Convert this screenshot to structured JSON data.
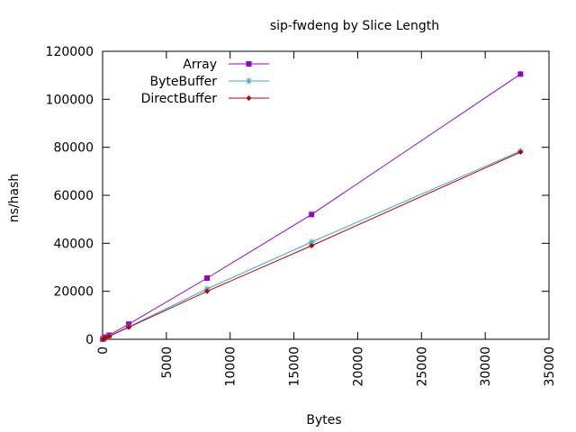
{
  "chart_data": {
    "type": "line",
    "title": "sip-fwdeng by Slice Length",
    "xlabel": "Bytes",
    "ylabel": "ns/hash",
    "xlim": [
      0,
      35000
    ],
    "ylim": [
      0,
      120000
    ],
    "xticks": [
      0,
      5000,
      10000,
      15000,
      20000,
      25000,
      30000,
      35000
    ],
    "yticks": [
      0,
      20000,
      40000,
      60000,
      80000,
      100000,
      120000
    ],
    "grid": false,
    "legend_position": "top-left",
    "series": [
      {
        "name": "Array",
        "color": "#9400d3",
        "marker": "square",
        "x": [
          16,
          32,
          64,
          128,
          256,
          512,
          2048,
          8192,
          16384,
          32768
        ],
        "y": [
          60,
          120,
          240,
          480,
          950,
          1700,
          6300,
          25500,
          52000,
          110500
        ]
      },
      {
        "name": "ByteBuffer",
        "color": "#3aa8d8",
        "marker": "star",
        "x": [
          16,
          32,
          64,
          128,
          256,
          512,
          2048,
          8192,
          16384,
          32768
        ],
        "y": [
          50,
          100,
          190,
          380,
          700,
          1300,
          5200,
          21000,
          40500,
          78500
        ]
      },
      {
        "name": "DirectBuffer",
        "color": "#c00000",
        "marker": "diamond",
        "x": [
          16,
          32,
          64,
          128,
          256,
          512,
          2048,
          8192,
          16384,
          32768
        ],
        "y": [
          50,
          95,
          185,
          370,
          680,
          1250,
          5000,
          20000,
          39000,
          78000
        ]
      }
    ]
  }
}
